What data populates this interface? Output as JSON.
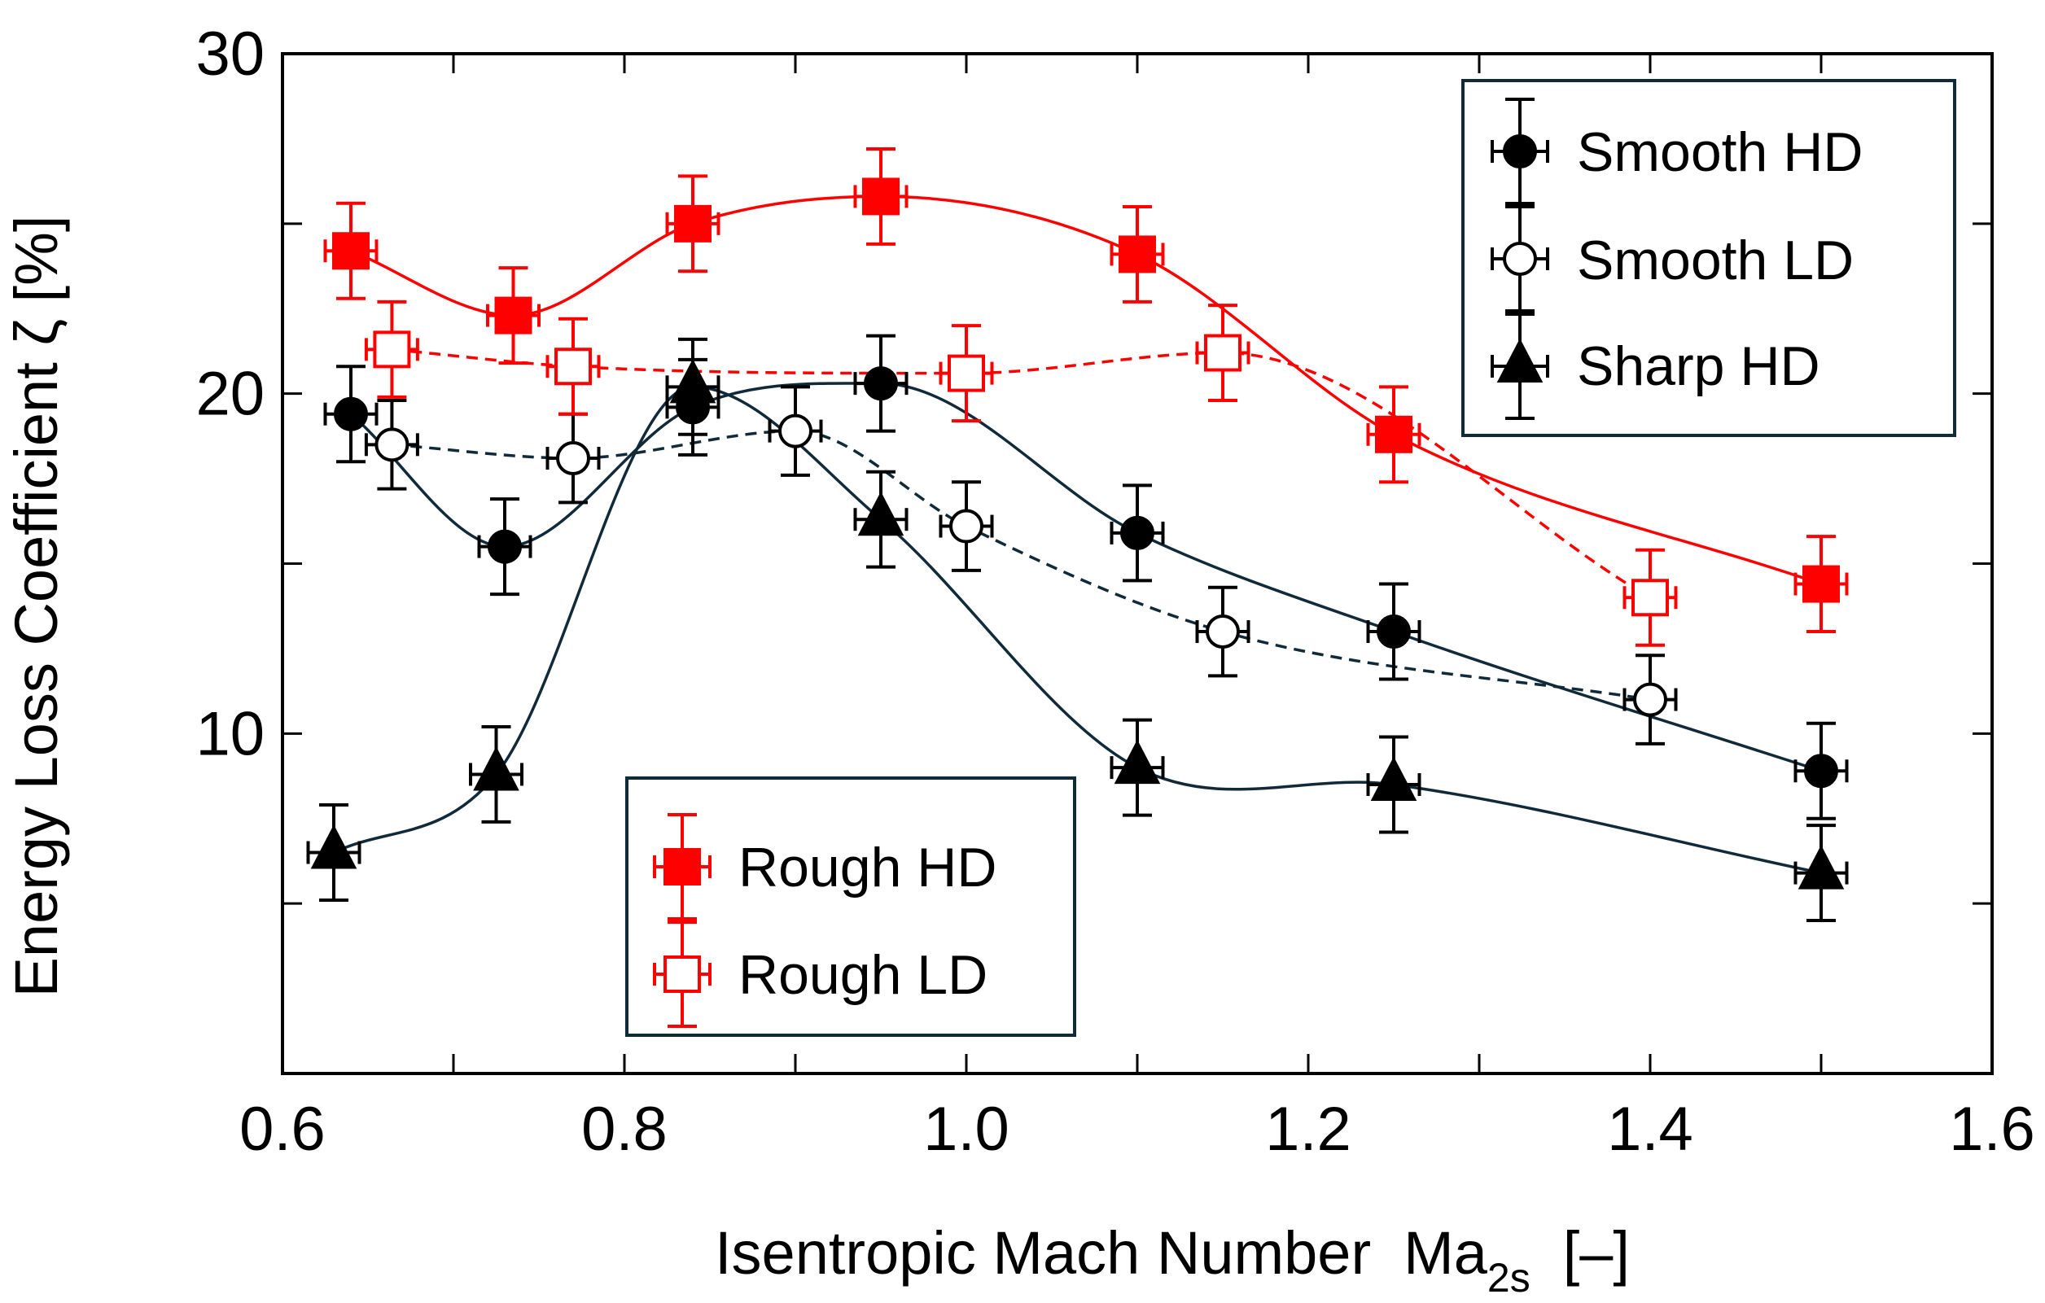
{
  "chart_data": {
    "type": "scatter",
    "title": "",
    "xlabel_main": "Isentropic Mach Number",
    "xlabel_symbol": "Ma",
    "xlabel_subscript": "2s",
    "xlabel_unit": "[–]",
    "ylabel": "Energy Loss Coefficient  ζ  [%]",
    "xlim": [
      0.6,
      1.6
    ],
    "ylim": [
      0,
      30
    ],
    "xticks": [
      0.6,
      0.8,
      1.0,
      1.2,
      1.4,
      1.6
    ],
    "xtick_labels": [
      "0.6",
      "0.8",
      "1.0",
      "1.2",
      "1.4",
      "1.6"
    ],
    "xminor": [
      0.7,
      0.9,
      1.1,
      1.3,
      1.5
    ],
    "yticks": [
      10,
      20,
      30
    ],
    "ytick_labels": [
      "10",
      "20",
      "30"
    ],
    "yminor": [
      5,
      15,
      25
    ],
    "grid": false,
    "x_error": 0.015,
    "series": [
      {
        "name": "Smooth HD",
        "color": "#102a3a",
        "marker": "circle",
        "filled": true,
        "line": "solid",
        "x": [
          0.64,
          0.73,
          0.84,
          0.95,
          1.1,
          1.25,
          1.5
        ],
        "y": [
          19.4,
          15.5,
          19.6,
          20.3,
          15.9,
          13.0,
          8.9
        ],
        "yerr": [
          1.4,
          1.4,
          1.4,
          1.4,
          1.4,
          1.4,
          1.4
        ]
      },
      {
        "name": "Smooth LD",
        "color": "#102a3a",
        "marker": "circle",
        "filled": false,
        "line": "dashed",
        "x": [
          0.664,
          0.77,
          0.9,
          1.0,
          1.15,
          1.4
        ],
        "y": [
          18.5,
          18.1,
          18.9,
          16.1,
          13.0,
          11.0
        ],
        "yerr": [
          1.3,
          1.3,
          1.3,
          1.3,
          1.3,
          1.3
        ]
      },
      {
        "name": "Sharp HD",
        "color": "#102a3a",
        "marker": "triangle",
        "filled": true,
        "line": "solid",
        "x": [
          0.63,
          0.725,
          0.84,
          0.95,
          1.1,
          1.25,
          1.5
        ],
        "y": [
          6.5,
          8.8,
          20.2,
          16.3,
          9.0,
          8.5,
          5.9
        ],
        "yerr": [
          1.4,
          1.4,
          1.4,
          1.4,
          1.4,
          1.4,
          1.4
        ]
      },
      {
        "name": "Rough HD",
        "color": "#ff0000",
        "marker": "square",
        "filled": true,
        "line": "solid",
        "x": [
          0.64,
          0.735,
          0.84,
          0.95,
          1.1,
          1.25,
          1.5
        ],
        "y": [
          24.2,
          22.3,
          25.0,
          25.8,
          24.1,
          18.8,
          14.4
        ],
        "yerr": [
          1.4,
          1.4,
          1.4,
          1.4,
          1.4,
          1.4,
          1.4
        ]
      },
      {
        "name": "Rough LD",
        "color": "#ff0000",
        "marker": "square",
        "filled": false,
        "line": "dashed",
        "x": [
          0.664,
          0.77,
          1.0,
          1.15,
          1.4
        ],
        "y": [
          21.3,
          20.8,
          20.6,
          21.2,
          14.0
        ],
        "yerr": [
          1.4,
          1.4,
          1.4,
          1.4,
          1.4
        ]
      }
    ],
    "legends": [
      {
        "placement": "top-right",
        "entries": [
          "Smooth HD",
          "Smooth LD",
          "Sharp HD"
        ]
      },
      {
        "placement": "lower-middle",
        "entries": [
          "Rough HD",
          "Rough LD"
        ]
      }
    ]
  }
}
